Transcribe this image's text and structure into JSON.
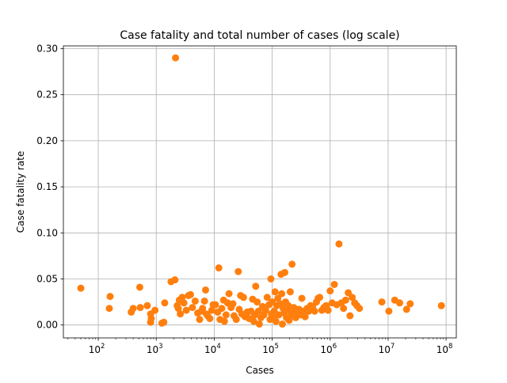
{
  "chart_data": {
    "type": "scatter",
    "title": "Case fatality and total number of cases (log scale)",
    "xlabel": "Cases",
    "ylabel": "Case fatality rate",
    "xscale": "log",
    "xlim": [
      25,
      150000000
    ],
    "ylim": [
      -0.014,
      0.303
    ],
    "grid": true,
    "point_color": "#ff7f0e",
    "x_ticks": [
      {
        "value": 100,
        "base": "10",
        "exp": "2"
      },
      {
        "value": 1000,
        "base": "10",
        "exp": "3"
      },
      {
        "value": 10000,
        "base": "10",
        "exp": "4"
      },
      {
        "value": 100000,
        "base": "10",
        "exp": "5"
      },
      {
        "value": 1000000,
        "base": "10",
        "exp": "6"
      },
      {
        "value": 10000000,
        "base": "10",
        "exp": "7"
      },
      {
        "value": 100000000,
        "base": "10",
        "exp": "8"
      }
    ],
    "y_ticks": [
      {
        "value": 0.0,
        "label": "0.00"
      },
      {
        "value": 0.05,
        "label": "0.05"
      },
      {
        "value": 0.1,
        "label": "0.10"
      },
      {
        "value": 0.15,
        "label": "0.15"
      },
      {
        "value": 0.2,
        "label": "0.20"
      },
      {
        "value": 0.25,
        "label": "0.25"
      },
      {
        "value": 0.3,
        "label": "0.30"
      }
    ],
    "points": [
      [
        50,
        0.04
      ],
      [
        160,
        0.031
      ],
      [
        155,
        0.018
      ],
      [
        370,
        0.014
      ],
      [
        400,
        0.018
      ],
      [
        520,
        0.041
      ],
      [
        530,
        0.019
      ],
      [
        700,
        0.021
      ],
      [
        800,
        0.012
      ],
      [
        820,
        0.007
      ],
      [
        800,
        0.003
      ],
      [
        950,
        0.016
      ],
      [
        1250,
        0.002
      ],
      [
        1350,
        0.003
      ],
      [
        1400,
        0.024
      ],
      [
        1800,
        0.047
      ],
      [
        2100,
        0.049
      ],
      [
        2150,
        0.29
      ],
      [
        2300,
        0.021
      ],
      [
        2400,
        0.018
      ],
      [
        2500,
        0.027
      ],
      [
        2600,
        0.012
      ],
      [
        2800,
        0.03
      ],
      [
        3000,
        0.024
      ],
      [
        3300,
        0.016
      ],
      [
        3600,
        0.032
      ],
      [
        3900,
        0.033
      ],
      [
        4200,
        0.019
      ],
      [
        4700,
        0.026
      ],
      [
        5200,
        0.013
      ],
      [
        5600,
        0.006
      ],
      [
        6000,
        0.015
      ],
      [
        6300,
        0.018
      ],
      [
        6800,
        0.026
      ],
      [
        7100,
        0.038
      ],
      [
        7300,
        0.012
      ],
      [
        7700,
        0.01
      ],
      [
        8400,
        0.007
      ],
      [
        9100,
        0.016
      ],
      [
        9600,
        0.022
      ],
      [
        10500,
        0.022
      ],
      [
        11500,
        0.014
      ],
      [
        12000,
        0.062
      ],
      [
        12600,
        0.006
      ],
      [
        13500,
        0.018
      ],
      [
        14500,
        0.027
      ],
      [
        15000,
        0.004
      ],
      [
        16000,
        0.011
      ],
      [
        17000,
        0.024
      ],
      [
        18000,
        0.034
      ],
      [
        19500,
        0.019
      ],
      [
        21000,
        0.023
      ],
      [
        22000,
        0.01
      ],
      [
        24000,
        0.006
      ],
      [
        26000,
        0.058
      ],
      [
        27000,
        0.017
      ],
      [
        28500,
        0.032
      ],
      [
        30000,
        0.012
      ],
      [
        32000,
        0.03
      ],
      [
        34000,
        0.009
      ],
      [
        37000,
        0.014
      ],
      [
        40000,
        0.007
      ],
      [
        43000,
        0.015
      ],
      [
        46000,
        0.028
      ],
      [
        48000,
        0.004
      ],
      [
        50000,
        0.011
      ],
      [
        52000,
        0.042
      ],
      [
        55000,
        0.025
      ],
      [
        58000,
        0.015
      ],
      [
        60000,
        0.001
      ],
      [
        64000,
        0.008
      ],
      [
        68000,
        0.02
      ],
      [
        72000,
        0.011
      ],
      [
        77000,
        0.016
      ],
      [
        82000,
        0.03
      ],
      [
        88000,
        0.022
      ],
      [
        92000,
        0.006
      ],
      [
        95000,
        0.05
      ],
      [
        97000,
        0.012
      ],
      [
        100000,
        0.025
      ],
      [
        104000,
        0.008
      ],
      [
        108000,
        0.015
      ],
      [
        112000,
        0.036
      ],
      [
        116000,
        0.004
      ],
      [
        120000,
        0.021
      ],
      [
        125000,
        0.029
      ],
      [
        130000,
        0.011
      ],
      [
        136000,
        0.023
      ],
      [
        142000,
        0.055
      ],
      [
        146000,
        0.034
      ],
      [
        150000,
        0.001
      ],
      [
        155000,
        0.018
      ],
      [
        160000,
        0.013
      ],
      [
        165000,
        0.057
      ],
      [
        170000,
        0.025
      ],
      [
        176000,
        0.008
      ],
      [
        182000,
        0.017
      ],
      [
        190000,
        0.021
      ],
      [
        196000,
        0.005
      ],
      [
        205000,
        0.036
      ],
      [
        212000,
        0.013
      ],
      [
        220000,
        0.066
      ],
      [
        228000,
        0.01
      ],
      [
        236000,
        0.019
      ],
      [
        245000,
        0.015
      ],
      [
        255000,
        0.008
      ],
      [
        270000,
        0.012
      ],
      [
        290000,
        0.017
      ],
      [
        310000,
        0.011
      ],
      [
        325000,
        0.029
      ],
      [
        345000,
        0.015
      ],
      [
        370000,
        0.009
      ],
      [
        400000,
        0.018
      ],
      [
        430000,
        0.015
      ],
      [
        460000,
        0.021
      ],
      [
        500000,
        0.02
      ],
      [
        540000,
        0.015
      ],
      [
        580000,
        0.025
      ],
      [
        620000,
        0.029
      ],
      [
        660000,
        0.03
      ],
      [
        720000,
        0.016
      ],
      [
        780000,
        0.019
      ],
      [
        850000,
        0.021
      ],
      [
        920000,
        0.016
      ],
      [
        1000000,
        0.037
      ],
      [
        1080000,
        0.024
      ],
      [
        1180000,
        0.044
      ],
      [
        1300000,
        0.022
      ],
      [
        1420000,
        0.088
      ],
      [
        1560000,
        0.024
      ],
      [
        1700000,
        0.018
      ],
      [
        1850000,
        0.027
      ],
      [
        2050000,
        0.035
      ],
      [
        2200000,
        0.01
      ],
      [
        2400000,
        0.03
      ],
      [
        2650000,
        0.024
      ],
      [
        2900000,
        0.021
      ],
      [
        3200000,
        0.018
      ],
      [
        7800000,
        0.025
      ],
      [
        10300000,
        0.015
      ],
      [
        13000000,
        0.027
      ],
      [
        15800000,
        0.024
      ],
      [
        20800000,
        0.017
      ],
      [
        24000000,
        0.023
      ],
      [
        83000000,
        0.021
      ]
    ]
  }
}
